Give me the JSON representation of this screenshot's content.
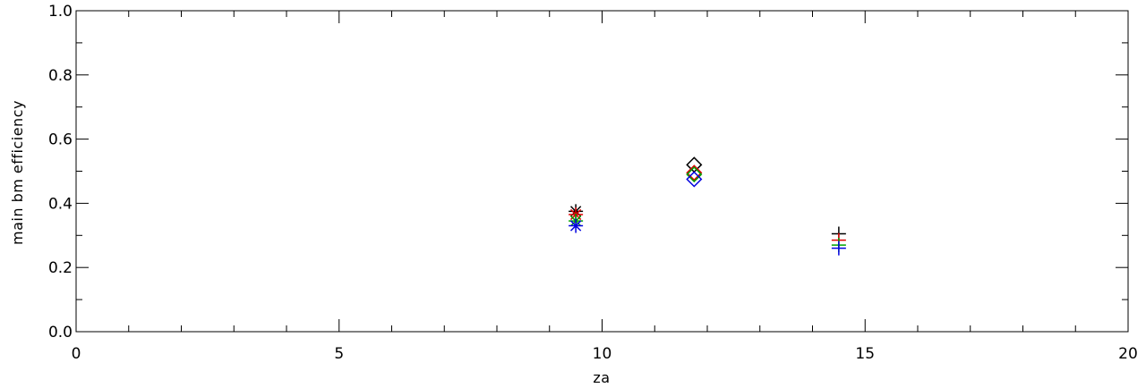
{
  "chart_data": {
    "type": "scatter",
    "title": "",
    "xlabel": "za",
    "ylabel": "main bm efficiency",
    "xlim": [
      0,
      20
    ],
    "ylim": [
      0,
      1
    ],
    "x_ticks": [
      0,
      5,
      10,
      15,
      20
    ],
    "x_tick_labels": [
      "0",
      "5",
      "10",
      "15",
      "20"
    ],
    "y_ticks": [
      0.0,
      0.2,
      0.4,
      0.6,
      0.8,
      1.0
    ],
    "y_tick_labels": [
      "0.0",
      "0.2",
      "0.4",
      "0.6",
      "0.8",
      "1.0"
    ],
    "x_minor_step": 1,
    "y_minor_step": 0.1,
    "grid": false,
    "series": [
      {
        "color": "#000000",
        "points": [
          {
            "x": 9.5,
            "y": 0.375,
            "marker": "asterisk"
          },
          {
            "x": 11.75,
            "y": 0.52,
            "marker": "diamond"
          },
          {
            "x": 14.5,
            "y": 0.305,
            "marker": "plus"
          }
        ]
      },
      {
        "color": "#e00000",
        "points": [
          {
            "x": 9.5,
            "y": 0.365,
            "marker": "asterisk"
          },
          {
            "x": 11.75,
            "y": 0.495,
            "marker": "diamond"
          },
          {
            "x": 14.5,
            "y": 0.285,
            "marker": "plus"
          }
        ]
      },
      {
        "color": "#00a000",
        "points": [
          {
            "x": 9.5,
            "y": 0.345,
            "marker": "asterisk"
          },
          {
            "x": 11.75,
            "y": 0.49,
            "marker": "diamond"
          },
          {
            "x": 14.5,
            "y": 0.27,
            "marker": "plus"
          }
        ]
      },
      {
        "color": "#0000e0",
        "points": [
          {
            "x": 9.5,
            "y": 0.33,
            "marker": "asterisk"
          },
          {
            "x": 11.75,
            "y": 0.475,
            "marker": "diamond"
          },
          {
            "x": 14.5,
            "y": 0.26,
            "marker": "plus"
          }
        ]
      }
    ]
  }
}
